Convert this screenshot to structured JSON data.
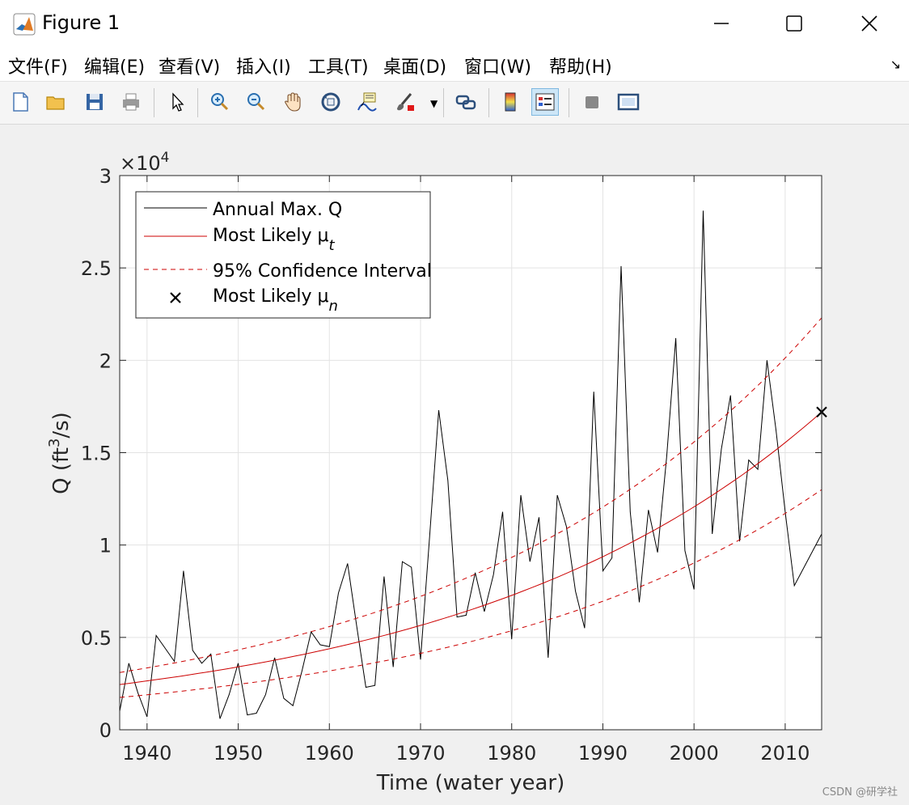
{
  "window": {
    "title": "Figure 1"
  },
  "menu": [
    "文件(F)",
    "编辑(E)",
    "查看(V)",
    "插入(I)",
    "工具(T)",
    "桌面(D)",
    "窗口(W)",
    "帮助(H)"
  ],
  "toolbar": {
    "icons": [
      "new-figure-icon",
      "open-file-icon",
      "save-icon",
      "print-icon",
      "edit-plot-pointer-icon",
      "zoom-in-icon",
      "zoom-out-icon",
      "pan-hand-icon",
      "rotate-3d-icon",
      "data-cursor-icon",
      "brush-icon",
      "link-plot-icon",
      "colorbar-icon",
      "legend-icon",
      "hide-tools-icon",
      "dock-icon"
    ],
    "active": "legend-icon"
  },
  "chart_data": {
    "type": "line",
    "xlabel": "Time (water year)",
    "ylabel": "Q (ft³/s)",
    "ylabel_parts": {
      "pre": "Q (ft",
      "sup": "3",
      "post": "/s)"
    },
    "exponent_label": {
      "base": "×10",
      "power": "4"
    },
    "xlim": [
      1937,
      2014
    ],
    "ylim": [
      0,
      3
    ],
    "y_scale": "×10^4",
    "xticks": [
      1940,
      1950,
      1960,
      1970,
      1980,
      1990,
      2000,
      2010
    ],
    "yticks": [
      0,
      0.5,
      1,
      1.5,
      2,
      2.5,
      3
    ],
    "ytick_labels": [
      "0",
      "0.5",
      "1",
      "1.5",
      "2",
      "2.5",
      "3"
    ],
    "grid": true,
    "legend_position": "top-left",
    "legend": [
      {
        "label": "Annual Max. Q",
        "sub": "",
        "style": "black-solid"
      },
      {
        "label": "Most Likely μ",
        "sub": "t",
        "style": "red-solid"
      },
      {
        "label": "95% Confidence Interval",
        "sub": "",
        "style": "red-dashed"
      },
      {
        "label": "Most Likely μ",
        "sub": "n",
        "style": "black-x"
      }
    ],
    "series": [
      {
        "name": "Annual Max. Q",
        "color": "#000000",
        "x": [
          1937,
          1938,
          1939,
          1940,
          1941,
          1942,
          1943,
          1944,
          1945,
          1946,
          1947,
          1948,
          1949,
          1950,
          1951,
          1952,
          1953,
          1954,
          1955,
          1956,
          1957,
          1958,
          1959,
          1960,
          1961,
          1962,
          1963,
          1964,
          1965,
          1966,
          1967,
          1968,
          1969,
          1970,
          1971,
          1972,
          1973,
          1974,
          1975,
          1976,
          1977,
          1978,
          1979,
          1980,
          1981,
          1982,
          1983,
          1984,
          1985,
          1986,
          1987,
          1988,
          1989,
          1990,
          1991,
          1992,
          1993,
          1994,
          1995,
          1996,
          1997,
          1998,
          1999,
          2000,
          2001,
          2002,
          2003,
          2004,
          2005,
          2006,
          2007,
          2008,
          2009,
          2010,
          2011,
          2014
        ],
        "y": [
          0.1,
          0.36,
          0.2,
          0.07,
          0.51,
          0.44,
          0.37,
          0.86,
          0.43,
          0.36,
          0.41,
          0.06,
          0.19,
          0.36,
          0.08,
          0.09,
          0.19,
          0.39,
          0.17,
          0.13,
          0.32,
          0.53,
          0.46,
          0.45,
          0.74,
          0.9,
          0.56,
          0.23,
          0.24,
          0.83,
          0.34,
          0.91,
          0.88,
          0.38,
          1.05,
          1.73,
          1.35,
          0.61,
          0.62,
          0.85,
          0.64,
          0.84,
          1.18,
          0.49,
          1.27,
          0.91,
          1.15,
          0.39,
          1.27,
          1.1,
          0.75,
          0.55,
          1.83,
          0.86,
          0.93,
          2.51,
          1.18,
          0.69,
          1.19,
          0.96,
          1.48,
          2.12,
          0.97,
          0.76,
          2.81,
          1.06,
          1.52,
          1.81,
          1.02,
          1.46,
          1.41,
          2.0,
          1.62,
          1.18,
          0.78,
          1.06
        ]
      },
      {
        "name": "Most Likely μt",
        "color": "#cc0000",
        "dash": "",
        "x": [
          1937,
          2014
        ],
        "y0": 0.245,
        "y1": 1.72
      },
      {
        "name": "95% CI upper",
        "color": "#cc0000",
        "dash": "6,5",
        "x": [
          1937,
          2014
        ],
        "y0": 0.31,
        "y1": 2.23
      },
      {
        "name": "95% CI lower",
        "color": "#cc0000",
        "dash": "6,5",
        "x": [
          1937,
          2014
        ],
        "y0": 0.175,
        "y1": 1.3
      },
      {
        "name": "Most Likely μn",
        "color": "#000000",
        "marker": "x",
        "x": [
          2014
        ],
        "y": [
          1.72
        ]
      }
    ]
  },
  "watermark": "CSDN @研学社"
}
